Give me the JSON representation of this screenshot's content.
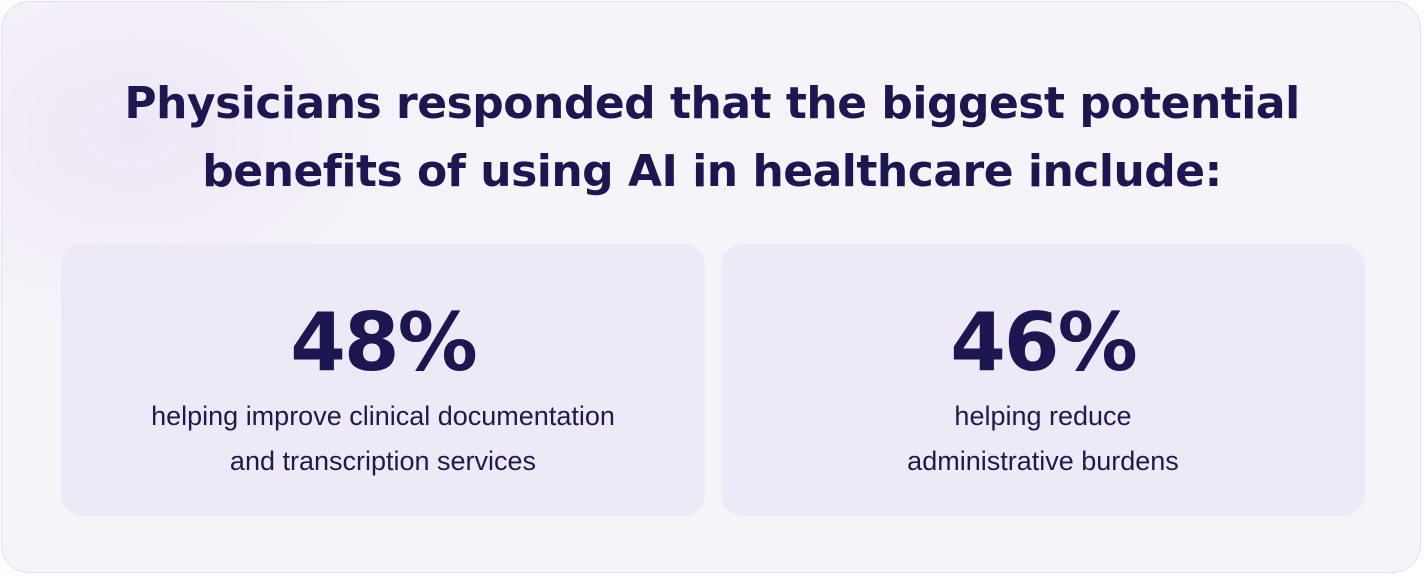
{
  "headline": {
    "line1": "Physicians responded that the biggest potential",
    "line2": "benefits of using AI in healthcare include:"
  },
  "stats": [
    {
      "value": "48%",
      "line1": "helping improve clinical documentation",
      "line2": "and transcription services"
    },
    {
      "value": "46%",
      "line1": "helping reduce",
      "line2": "administrative burdens"
    }
  ],
  "colors": {
    "text": "#1c1651",
    "card_background": "#f6f4f9",
    "stat_background": "#ede9f6",
    "border": "#e4e0f2"
  }
}
